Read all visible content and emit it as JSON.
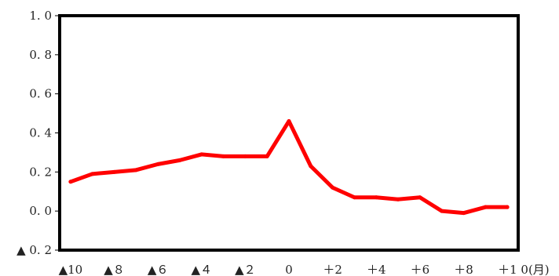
{
  "colors": {
    "series": "#ff0000",
    "axis": "#000000",
    "text": "#222222"
  },
  "chart_data": {
    "type": "line",
    "title": "",
    "xlabel": "",
    "ylabel": "",
    "x": [
      -10,
      -9,
      -8,
      -7,
      -6,
      -5,
      -4,
      -3,
      -2,
      -1,
      0,
      1,
      2,
      3,
      4,
      5,
      6,
      7,
      8,
      9,
      10
    ],
    "x_range": [
      -10.5,
      10.5
    ],
    "x_ticks": [
      {
        "value": -10,
        "label": "▲10"
      },
      {
        "value": -8,
        "label": "▲８"
      },
      {
        "value": -6,
        "label": "▲６"
      },
      {
        "value": -4,
        "label": "▲４"
      },
      {
        "value": -2,
        "label": "▲２"
      },
      {
        "value": 0,
        "label": "0"
      },
      {
        "value": 2,
        "label": "＋2"
      },
      {
        "value": 4,
        "label": "＋4"
      },
      {
        "value": 6,
        "label": "＋6"
      },
      {
        "value": 8,
        "label": "＋8"
      },
      {
        "value": 10,
        "label": "＋1 0(月)"
      }
    ],
    "ylim": [
      -0.2,
      1.0
    ],
    "y_ticks": [
      {
        "value": 1.0,
        "label": "1. 0"
      },
      {
        "value": 0.8,
        "label": "0. 8"
      },
      {
        "value": 0.6,
        "label": "0. 6"
      },
      {
        "value": 0.4,
        "label": "0. 4"
      },
      {
        "value": 0.2,
        "label": "0. 2"
      },
      {
        "value": 0.0,
        "label": "0. 0"
      },
      {
        "value": -0.2,
        "label": "▲ 0. 2"
      }
    ],
    "grid": false,
    "legend": "none",
    "series": [
      {
        "values": [
          0.15,
          0.19,
          0.2,
          0.21,
          0.24,
          0.26,
          0.29,
          0.28,
          0.28,
          0.28,
          0.46,
          0.23,
          0.12,
          0.07,
          0.07,
          0.06,
          0.07,
          0.0,
          -0.01,
          0.02,
          0.02
        ]
      }
    ]
  }
}
